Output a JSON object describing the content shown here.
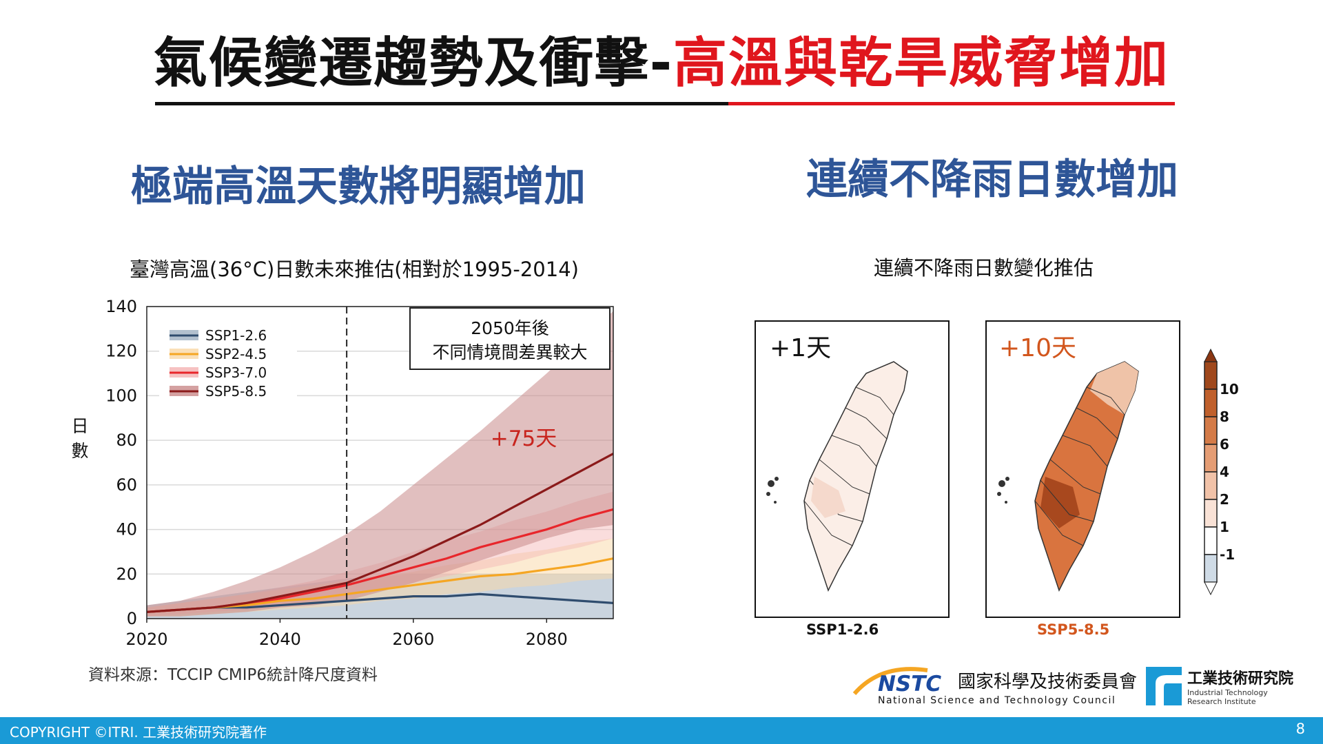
{
  "title": {
    "main": "氣候變遷趨勢及衝擊-",
    "highlight": "高溫與乾旱威脅增加"
  },
  "left_section": {
    "heading": "極端高溫天數將明顯增加"
  },
  "right_section": {
    "heading": "連續不降雨日數增加"
  },
  "source_note": "資料來源：TCCIP CMIP6統計降尺度資料",
  "footer": {
    "copyright": "COPYRIGHT ©ITRI. 工業技術研究院著作",
    "page_number": "8"
  },
  "colors": {
    "ssp126": "#2f4c6e",
    "ssp245": "#f5a623",
    "ssp370": "#e8262b",
    "ssp585": "#8b1a1a",
    "title_red": "#e0161d",
    "heading_blue": "#2e5597",
    "footer_blue": "#1a9ad6"
  },
  "chart_data": [
    {
      "type": "line",
      "title": "臺灣高溫(36°C)日數未來推估(相對於1995-2014)",
      "ylabel": "日數",
      "xlabel": "",
      "xlim": [
        2020,
        2090
      ],
      "ylim": [
        0,
        140
      ],
      "x_ticks": [
        2020,
        2040,
        2060,
        2080
      ],
      "y_ticks": [
        0,
        20,
        40,
        60,
        80,
        100,
        120,
        140
      ],
      "grid": true,
      "legend_position": "top-left",
      "vline": {
        "x": 2050,
        "style": "dashed"
      },
      "annotation_box": {
        "line1": "2050年後",
        "line2": "不同情境間差異較大"
      },
      "annotation_value": "+75天",
      "x": [
        2020,
        2025,
        2030,
        2035,
        2040,
        2045,
        2050,
        2055,
        2060,
        2065,
        2070,
        2075,
        2080,
        2085,
        2090
      ],
      "series": [
        {
          "name": "SSP1-2.6",
          "values": [
            3,
            4,
            5,
            5,
            6,
            7,
            8,
            9,
            10,
            10,
            11,
            10,
            9,
            8,
            7
          ],
          "band_low": [
            0,
            0,
            0,
            0,
            0,
            0,
            0,
            0,
            0,
            0,
            0,
            0,
            0,
            0,
            0
          ],
          "band_high": [
            6,
            8,
            10,
            12,
            14,
            16,
            18,
            19,
            20,
            20,
            20,
            20,
            20,
            20,
            20
          ]
        },
        {
          "name": "SSP2-4.5",
          "values": [
            3,
            4,
            5,
            6,
            8,
            9,
            11,
            13,
            15,
            17,
            19,
            20,
            22,
            24,
            27
          ],
          "band_low": [
            1,
            1,
            2,
            3,
            4,
            5,
            6,
            8,
            9,
            11,
            12,
            14,
            15,
            17,
            18
          ],
          "band_high": [
            5,
            7,
            9,
            11,
            13,
            15,
            17,
            19,
            21,
            24,
            26,
            29,
            31,
            34,
            36
          ]
        },
        {
          "name": "SSP3-7.0",
          "values": [
            3,
            4,
            5,
            7,
            9,
            12,
            15,
            19,
            23,
            27,
            32,
            36,
            40,
            45,
            49
          ],
          "band_low": [
            1,
            2,
            3,
            4,
            6,
            8,
            10,
            13,
            16,
            19,
            22,
            25,
            29,
            32,
            36
          ],
          "band_high": [
            5,
            7,
            9,
            11,
            14,
            17,
            21,
            25,
            30,
            35,
            39,
            44,
            48,
            53,
            57
          ]
        },
        {
          "name": "SSP5-8.5",
          "values": [
            3,
            4,
            5,
            7,
            10,
            13,
            16,
            22,
            28,
            35,
            42,
            50,
            58,
            66,
            74
          ],
          "band_low": [
            1,
            1,
            2,
            3,
            5,
            6,
            8,
            12,
            16,
            21,
            26,
            31,
            36,
            40,
            42
          ],
          "band_high": [
            6,
            8,
            12,
            17,
            23,
            30,
            38,
            48,
            60,
            72,
            84,
            97,
            110,
            124,
            138
          ]
        }
      ]
    },
    {
      "type": "heatmap",
      "title": "連續不降雨日數變化推估",
      "panels": [
        {
          "scenario": "SSP1-2.6",
          "label": "+1天",
          "change_days": 1
        },
        {
          "scenario": "SSP5-8.5",
          "label": "+10天",
          "change_days": 10
        }
      ],
      "colorbar": {
        "ticks": [
          "10",
          "8",
          "6",
          "4",
          "2",
          "1",
          "-1"
        ],
        "range": [
          -1,
          10
        ]
      }
    }
  ]
}
